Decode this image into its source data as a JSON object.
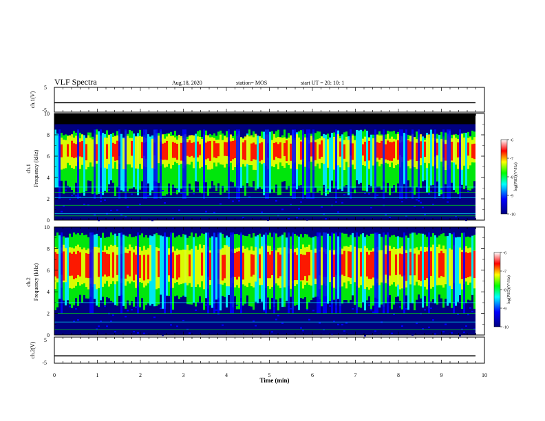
{
  "header": {
    "title": "VLF Spectra",
    "date": "Aug.18, 2020",
    "station": "station= MOS",
    "start_ut": "start  UT =   20: 10: 1"
  },
  "chart_data": [
    {
      "type": "line",
      "panel": "ch.1 waveform",
      "ylabel": "ch.1(V)",
      "ylim": [
        -5,
        5
      ],
      "yticks": [
        "5",
        "-5"
      ],
      "series": [
        {
          "values": [
            -1.2,
            -1.2
          ]
        }
      ],
      "x": [
        0,
        10
      ]
    },
    {
      "type": "heatmap",
      "panel": "ch.1 spectrogram",
      "ylabel_top": "ch.1",
      "ylabel": "Frequency (kHz)",
      "ylim": [
        0,
        10
      ],
      "yticks": [
        "0",
        "2",
        "4",
        "6",
        "8",
        "10"
      ],
      "xlim": [
        0,
        10
      ],
      "colorbar": {
        "label": "log(PSD)(V²/Hz)",
        "range": [
          -10,
          -6
        ],
        "ticks": [
          "-6",
          "-7",
          "-8",
          "-9",
          "-10"
        ]
      },
      "emission_band_khz": [
        3,
        8.5
      ],
      "peak_band_khz": [
        5.5,
        7.5
      ],
      "cutoff_khz": 9.0
    },
    {
      "type": "heatmap",
      "panel": "ch.2 spectrogram",
      "ylabel_top": "ch.2",
      "ylabel": "Frequency (kHz)",
      "ylim": [
        0,
        10
      ],
      "yticks": [
        "0",
        "2",
        "4",
        "6",
        "8",
        "10"
      ],
      "xlim": [
        0,
        10
      ],
      "colorbar": {
        "label": "log(PSD)(V²/Hz)",
        "range": [
          -10,
          -6
        ],
        "ticks": [
          "-6",
          "-7",
          "-8",
          "-9",
          "-10"
        ]
      },
      "emission_band_khz": [
        3,
        9.5
      ],
      "peak_band_khz": [
        5,
        7.8
      ]
    },
    {
      "type": "line",
      "panel": "ch.2 waveform",
      "ylabel": "ch.2(V)",
      "ylim": [
        -5,
        5
      ],
      "yticks": [
        "5",
        "-5"
      ],
      "series": [
        {
          "values": [
            -2.2,
            -2.2
          ]
        }
      ],
      "x": [
        0,
        10
      ]
    }
  ],
  "xaxis": {
    "label": "Time (min)",
    "ticks": [
      "0",
      "1",
      "2",
      "3",
      "4",
      "5",
      "6",
      "7",
      "8",
      "9",
      "10"
    ],
    "range": [
      0,
      10
    ]
  },
  "colors": {
    "dark_blue": "#00007f",
    "blue": "#0000ff",
    "cyan": "#00ffff",
    "green": "#00ff00",
    "yellow": "#ffff00",
    "red": "#ff0000",
    "background_black": "#000000"
  }
}
